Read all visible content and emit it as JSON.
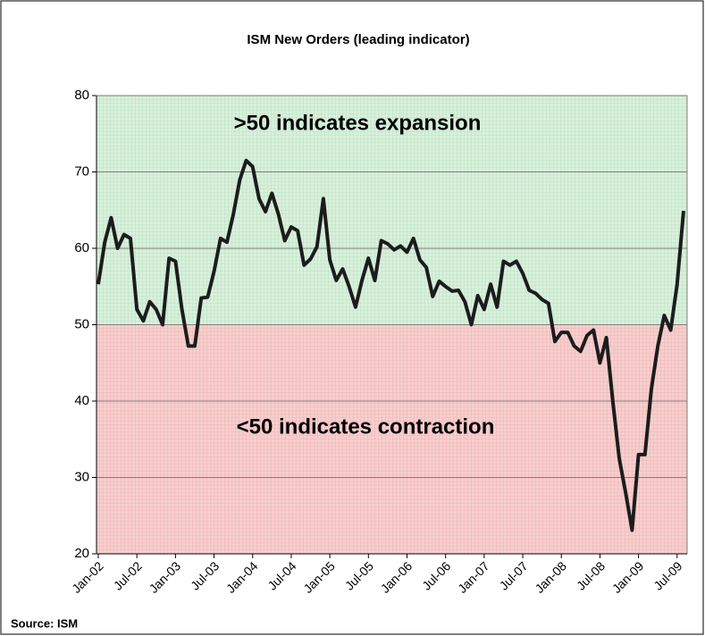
{
  "chart_data": {
    "type": "line",
    "title": "ISM New Orders (leading indicator)",
    "annotations": [
      ">50 indicates expansion",
      "<50 indicates contraction"
    ],
    "source": "Source: ISM",
    "categories": [
      "Jan-02",
      null,
      null,
      null,
      null,
      null,
      "Jul-02",
      null,
      null,
      null,
      null,
      null,
      "Jan-03",
      null,
      null,
      null,
      null,
      null,
      "Jul-03",
      null,
      null,
      null,
      null,
      null,
      "Jan-04",
      null,
      null,
      null,
      null,
      null,
      "Jul-04",
      null,
      null,
      null,
      null,
      null,
      "Jan-05",
      null,
      null,
      null,
      null,
      null,
      "Jul-05",
      null,
      null,
      null,
      null,
      null,
      "Jan-06",
      null,
      null,
      null,
      null,
      null,
      "Jul-06",
      null,
      null,
      null,
      null,
      null,
      "Jan-07",
      null,
      null,
      null,
      null,
      null,
      "Jul-07",
      null,
      null,
      null,
      null,
      null,
      "Jan-08",
      null,
      null,
      null,
      null,
      null,
      "Jul-08",
      null,
      null,
      null,
      null,
      null,
      "Jan-09",
      null,
      null,
      null,
      null,
      null,
      "Jul-09",
      null
    ],
    "values": [
      55.3,
      60.8,
      64,
      60,
      61.8,
      61.3,
      52,
      50.5,
      53,
      52,
      50,
      58.7,
      58.3,
      52,
      47.2,
      47.2,
      53.5,
      53.6,
      57,
      61.3,
      60.8,
      64.5,
      69,
      71.5,
      70.7,
      66.5,
      64.8,
      67.2,
      64.5,
      61,
      62.8,
      62.3,
      57.8,
      58.6,
      60.2,
      66.5,
      58.5,
      55.8,
      57.3,
      55,
      52.3,
      55.8,
      58.7,
      55.8,
      61,
      60.6,
      59.8,
      60.3,
      59.5,
      61.3,
      58.5,
      57.5,
      53.7,
      55.7,
      55,
      54.4,
      54.5,
      53,
      50,
      53.8,
      52,
      55.3,
      52.3,
      58.3,
      57.8,
      58.3,
      56.7,
      54.5,
      54.1,
      53.3,
      52.8,
      47.8,
      49,
      49,
      47.2,
      46.5,
      48.6,
      49.3,
      45,
      48.3,
      40,
      32.5,
      28,
      23.1,
      33,
      33,
      41.6,
      47.2,
      51.2,
      49.3,
      55.3,
      64.9
    ],
    "color": "#1c1c1c",
    "threshold": 50,
    "above_color": "#d9f0dc",
    "below_color": "#f7cfcf",
    "ylim": [
      20,
      80
    ],
    "yticks": [
      20,
      30,
      40,
      50,
      60,
      70,
      80
    ],
    "grid": true
  }
}
